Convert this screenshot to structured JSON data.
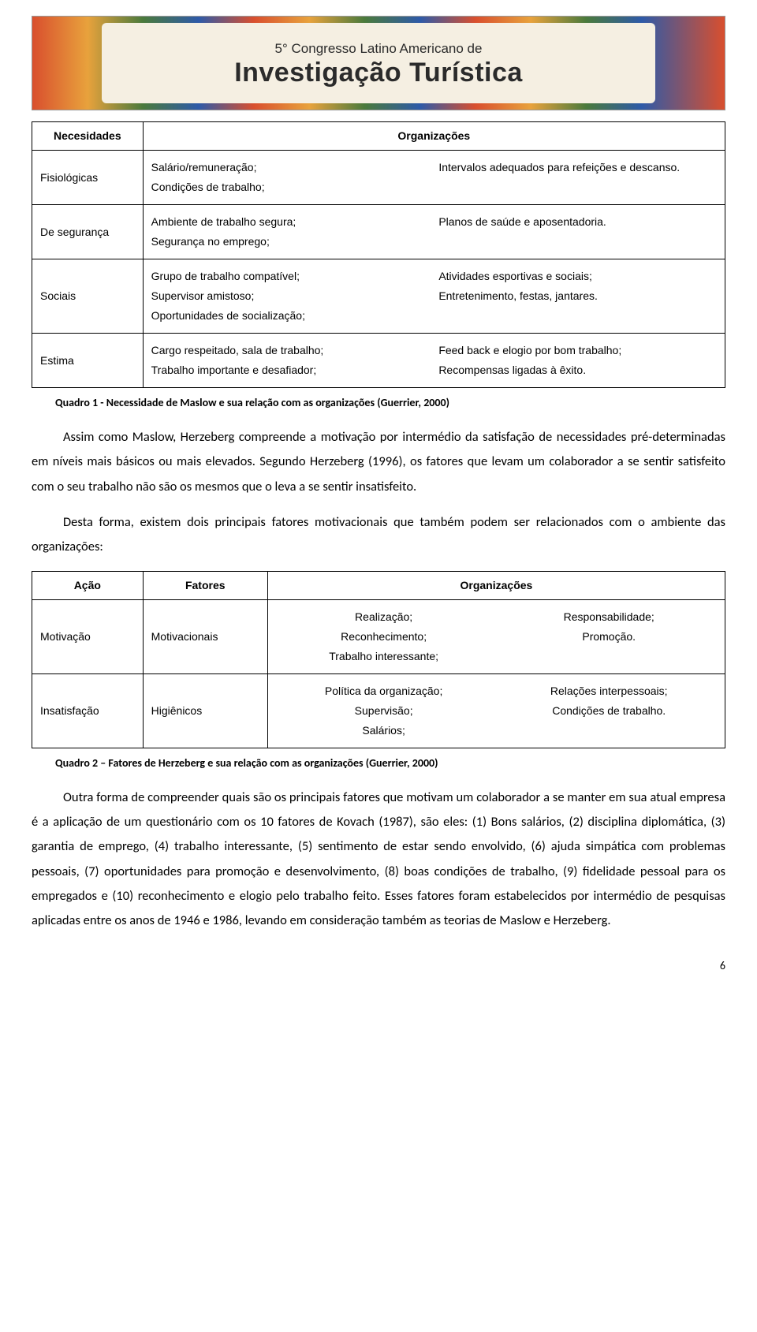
{
  "banner": {
    "top": "5° Congresso Latino Americano de",
    "main": "Investigação Turística"
  },
  "table1": {
    "headers": [
      "Necesidades",
      "Organizações"
    ],
    "rows": [
      {
        "label": "Fisiológicas",
        "left": [
          "Salário/remuneração;",
          "Condições de trabalho;"
        ],
        "right": [
          "Intervalos adequados para refeições e descanso."
        ]
      },
      {
        "label": "De segurança",
        "left": [
          "Ambiente de trabalho segura;",
          "Segurança no emprego;"
        ],
        "right": [
          "Planos de saúde e aposentadoria."
        ]
      },
      {
        "label": "Sociais",
        "left": [
          "Grupo de trabalho compatível;",
          "Supervisor amistoso;",
          "Oportunidades de socialização;"
        ],
        "right": [
          "Atividades esportivas e sociais;",
          "Entretenimento, festas, jantares."
        ]
      },
      {
        "label": "Estima",
        "left": [
          "Cargo respeitado, sala de trabalho;",
          "Trabalho importante e desafiador;"
        ],
        "right": [
          "Feed back e elogio por bom trabalho;",
          "Recompensas ligadas à êxito."
        ]
      }
    ]
  },
  "caption1": "Quadro 1 - Necessidade de Maslow e sua relação com as organizações (Guerrier, 2000)",
  "para1": "Assim como Maslow, Herzeberg compreende a motivação por intermédio da satisfação de necessidades pré-determinadas em níveis mais básicos ou mais elevados. Segundo Herzeberg (1996), os fatores que levam um colaborador a se sentir satisfeito com o seu trabalho não são os mesmos que o leva a se sentir insatisfeito.",
  "para2": "Desta forma, existem dois principais fatores motivacionais que também podem ser relacionados com o ambiente das organizações:",
  "table2": {
    "headers": [
      "Ação",
      "Fatores",
      "Organizações"
    ],
    "rows": [
      {
        "c1": "Motivação",
        "c2": "Motivacionais",
        "left": [
          "Realização;",
          "Reconhecimento;",
          "Trabalho interessante;"
        ],
        "right": [
          "Responsabilidade;",
          "Promoção."
        ]
      },
      {
        "c1": "Insatisfação",
        "c2": "Higiênicos",
        "left": [
          "Política da organização;",
          "Supervisão;",
          "Salários;"
        ],
        "right": [
          "Relações interpessoais;",
          "Condições de trabalho."
        ]
      }
    ]
  },
  "caption2": "Quadro 2 – Fatores de Herzeberg e sua relação com as organizações (Guerrier, 2000)",
  "para3": "Outra forma de compreender quais são os principais fatores que motivam um colaborador a se manter em sua atual empresa é a aplicação de um questionário com os 10 fatores de Kovach (1987), são eles: (1) Bons salários, (2) disciplina diplomática, (3) garantia de emprego, (4) trabalho interessante, (5) sentimento de estar sendo envolvido, (6) ajuda simpática com problemas pessoais, (7) oportunidades para promoção e desenvolvimento, (8) boas condições de trabalho, (9) fidelidade pessoal para os empregados e (10) reconhecimento e elogio pelo trabalho feito. Esses fatores foram estabelecidos por intermédio de pesquisas aplicadas entre os anos de 1946 e 1986, levando em consideração também as teorias de Maslow e Herzeberg.",
  "page_number": "6"
}
